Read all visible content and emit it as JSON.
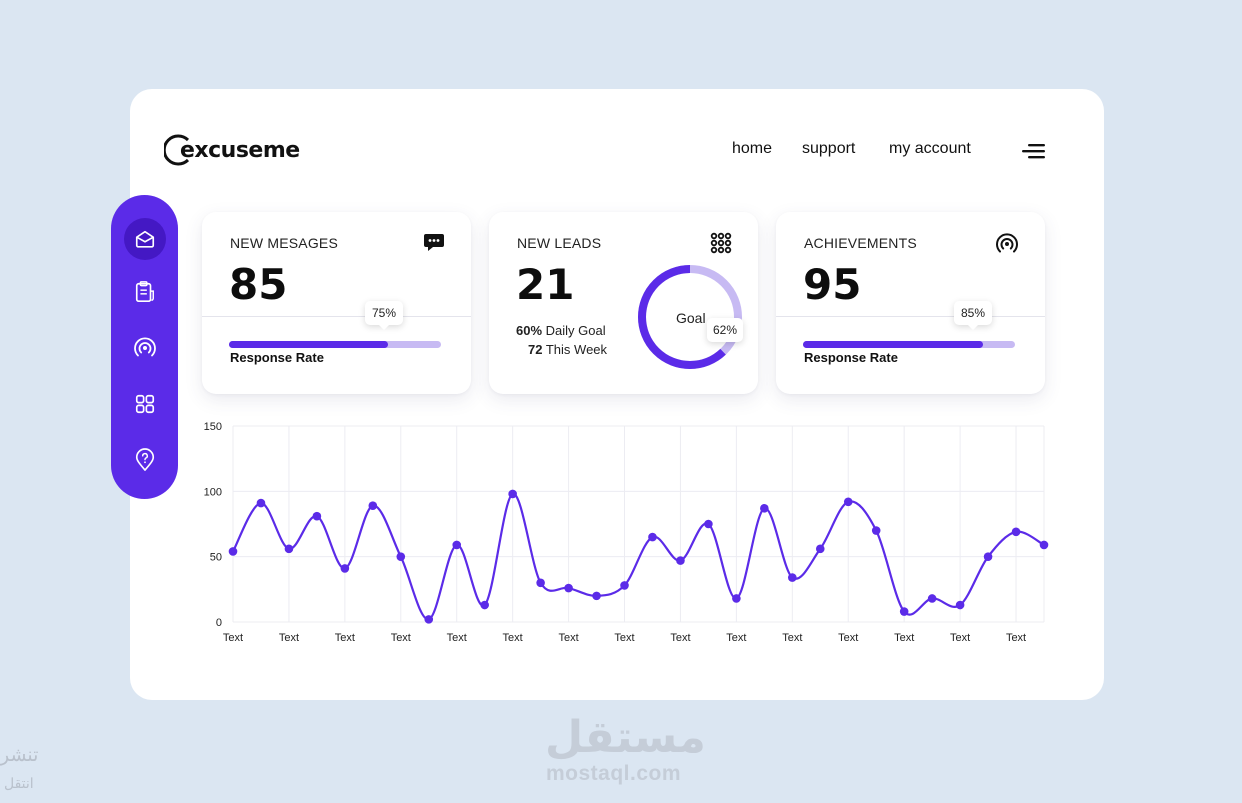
{
  "brand": {
    "name": "excuseme"
  },
  "nav": {
    "items": [
      "home",
      "support",
      "my account"
    ]
  },
  "sidebar": {
    "items": [
      "inbox-icon",
      "clipboard-icon",
      "broadcast-icon",
      "grid-icon",
      "help-pin-icon"
    ],
    "active": 0
  },
  "colors": {
    "accent": "#5b2be8",
    "accent_light": "#c7baf3",
    "background": "#dbe6f2"
  },
  "cards": {
    "messages": {
      "title": "NEW MESAGES",
      "value": "85",
      "progress_label": "Response Rate",
      "progress": 0.75,
      "tip": "75%",
      "icon": "chat-bubble-icon"
    },
    "leads": {
      "title": "NEW LEADS",
      "value": "21",
      "daily_pct": "60%",
      "daily_label": "Daily Goal",
      "week_count": "72",
      "week_label": "This Week",
      "goal_label": "Goal",
      "goal_progress": 0.62,
      "goal_tip": "62%",
      "icon": "dots-grid-icon"
    },
    "achievements": {
      "title": "ACHIEVEMENTS",
      "value": "95",
      "progress_label": "Response Rate",
      "progress": 0.85,
      "tip": "85%",
      "icon": "broadcast-icon"
    }
  },
  "chart_data": {
    "type": "line",
    "x": [
      0,
      0.5,
      1,
      1.5,
      2,
      2.5,
      3,
      3.5,
      4,
      4.5,
      5,
      5.5,
      6,
      6.5,
      7,
      7.5,
      8,
      8.5,
      9,
      9.5,
      10,
      10.5,
      11,
      11.5,
      12,
      12.5,
      13,
      13.5,
      14,
      14.5
    ],
    "values": [
      54,
      91,
      56,
      81,
      41,
      89,
      50,
      2,
      59,
      13,
      98,
      30,
      26,
      20,
      28,
      65,
      47,
      75,
      18,
      87,
      34,
      56,
      92,
      70,
      8,
      18,
      13,
      50,
      69,
      59
    ],
    "categories": [
      "Text",
      "Text",
      "Text",
      "Text",
      "Text",
      "Text",
      "Text",
      "Text",
      "Text",
      "Text",
      "Text",
      "Text",
      "Text",
      "Text",
      "Text"
    ],
    "yticks": [
      "0",
      "50",
      "100",
      "150"
    ],
    "ylim": [
      0,
      150
    ],
    "grid": true
  },
  "watermark": {
    "arabic": "مستقل",
    "latin": "mostaql.com",
    "side_top": "تنشر",
    "side_bottom": "انتقل"
  }
}
